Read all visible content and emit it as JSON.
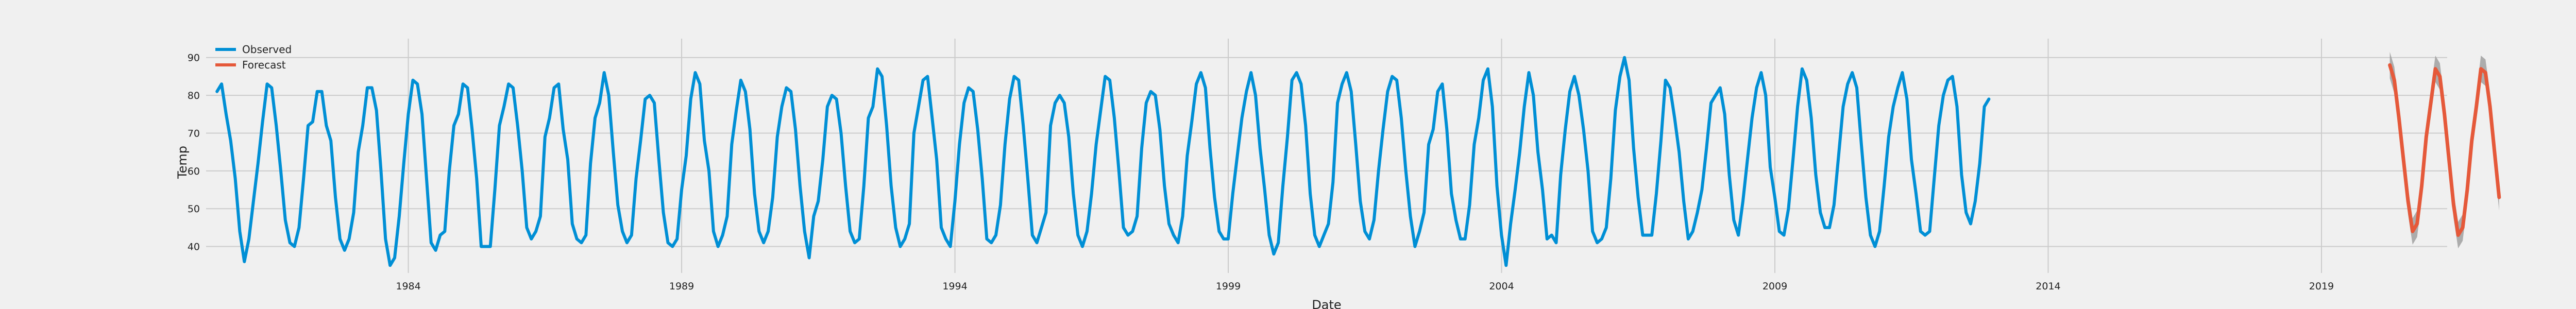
{
  "chart_data": {
    "type": "line",
    "title": "",
    "xlabel": "Date",
    "ylabel": "Temp",
    "xlim": [
      1980.3,
      2021.3
    ],
    "ylim": [
      33,
      95
    ],
    "xticks": [
      1984,
      1989,
      1994,
      1999,
      2004,
      2009,
      2014,
      2019
    ],
    "yticks": [
      40,
      50,
      60,
      70,
      80,
      90
    ],
    "grid": true,
    "legend": {
      "position": "top-left"
    },
    "colors": {
      "observed": "#008fd5",
      "forecast": "#e5593a",
      "band": "#a0a0a0",
      "grid": "#cbcbcb",
      "background": "#f0f0f0"
    },
    "series": [
      {
        "name": "Observed",
        "x_start": 1980.5,
        "x_step": 0.08333,
        "values": [
          81,
          83,
          75,
          68,
          58,
          44,
          36,
          42,
          52,
          62,
          73,
          83,
          82,
          72,
          60,
          47,
          41,
          40,
          45,
          58,
          72,
          73,
          81,
          81,
          72,
          68,
          53,
          42,
          39,
          42,
          49,
          65,
          72,
          82,
          82,
          76,
          60,
          42,
          35,
          37,
          48,
          62,
          75,
          84,
          83,
          75,
          58,
          41,
          39,
          43,
          44,
          60,
          72,
          75,
          83,
          82,
          71,
          58,
          40,
          40,
          40,
          55,
          72,
          77,
          83,
          82,
          72,
          60,
          45,
          42,
          44,
          48,
          69,
          74,
          82,
          83,
          71,
          63,
          46,
          42,
          41,
          43,
          62,
          74,
          78,
          86,
          80,
          65,
          51,
          44,
          41,
          43,
          58,
          68,
          79,
          80,
          78,
          63,
          49,
          41,
          40,
          42,
          55,
          64,
          79,
          86,
          83,
          68,
          60,
          44,
          40,
          43,
          48,
          67,
          76,
          84,
          81,
          71,
          54,
          44,
          41,
          44,
          53,
          69,
          77,
          82,
          81,
          71,
          56,
          44,
          37,
          48,
          52,
          63,
          77,
          80,
          79,
          70,
          56,
          44,
          41,
          42,
          56,
          74,
          77,
          87,
          85,
          72,
          56,
          45,
          40,
          42,
          46,
          70,
          77,
          84,
          85,
          74,
          63,
          45,
          42,
          40,
          52,
          67,
          78,
          82,
          81,
          71,
          58,
          42,
          41,
          43,
          51,
          67,
          79,
          85,
          84,
          72,
          58,
          43,
          41,
          45,
          49,
          72,
          78,
          80,
          78,
          69,
          54,
          43,
          40,
          44,
          54,
          67,
          76,
          85,
          84,
          74,
          60,
          45,
          43,
          44,
          48,
          66,
          78,
          81,
          80,
          71,
          56,
          46,
          43,
          41,
          48,
          64,
          73,
          83,
          86,
          82,
          66,
          53,
          44,
          42,
          42,
          54,
          64,
          74,
          81,
          86,
          80,
          66,
          55,
          43,
          38,
          41,
          56,
          69,
          84,
          86,
          83,
          72,
          54,
          43,
          40,
          43,
          46,
          57,
          78,
          83,
          86,
          81,
          67,
          52,
          44,
          42,
          47,
          60,
          71,
          81,
          85,
          84,
          74,
          60,
          48,
          40,
          44,
          49,
          67,
          71,
          81,
          83,
          71,
          54,
          47,
          42,
          42,
          51,
          67,
          74,
          84,
          87,
          77,
          56,
          43,
          35,
          46,
          55,
          65,
          77,
          86,
          80,
          65,
          55,
          42,
          43,
          41,
          59,
          71,
          81,
          85,
          80,
          71,
          60,
          44,
          41,
          42,
          45,
          58,
          76,
          85,
          90,
          84,
          66,
          53,
          43,
          43,
          43,
          54,
          68,
          84,
          82,
          74,
          65,
          52,
          42,
          44,
          49,
          55,
          66,
          78,
          80,
          82,
          75,
          59,
          47,
          43,
          52,
          63,
          74,
          82,
          86,
          80,
          61,
          53,
          44,
          43,
          50,
          63,
          77,
          87,
          84,
          74,
          59,
          49,
          45,
          45,
          51,
          64,
          77,
          83,
          86,
          82,
          67,
          53,
          43,
          40,
          44,
          56,
          69,
          77,
          82,
          86,
          79,
          63,
          54,
          44,
          43,
          44,
          58,
          72,
          80,
          84,
          85,
          77,
          59,
          49,
          46,
          52,
          62,
          77,
          79
        ]
      },
      {
        "name": "Forecast",
        "x_start": 2020.25,
        "x_step": 0.08333,
        "values": [
          88,
          84,
          74,
          63,
          52,
          44,
          46,
          56,
          69,
          78,
          87,
          85,
          75,
          63,
          51,
          43,
          45,
          55,
          68,
          77,
          87,
          86,
          77,
          65,
          53
        ],
        "band_width": 3.5
      }
    ]
  }
}
